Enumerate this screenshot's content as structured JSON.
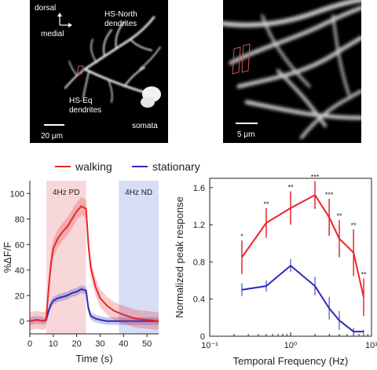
{
  "micrograph_left": {
    "orientation_labels": [
      "dorsal",
      "medial"
    ],
    "region_labels": {
      "hs_north": [
        "HS-North",
        "dendrites"
      ],
      "hs_eq": [
        "HS-Eq",
        "dendrites"
      ],
      "somata": "somata"
    },
    "scalebar_label": "20 μm"
  },
  "micrograph_right": {
    "scalebar_label": "5 μm"
  },
  "legend": {
    "items": [
      {
        "label": "walking",
        "color": "#e8262a"
      },
      {
        "label": "stationary",
        "color": "#2b2bb8"
      }
    ]
  },
  "chart_data": [
    {
      "type": "line",
      "ylabel": "%ΔF/F",
      "xlabel": "Time (s)",
      "xlim": [
        0,
        55
      ],
      "ylim": [
        -10,
        110
      ],
      "xticks": [
        0,
        10,
        20,
        30,
        40,
        50
      ],
      "yticks": [
        0,
        20,
        40,
        60,
        80,
        100
      ],
      "shaded_regions": [
        {
          "label": "4Hz PD",
          "x": [
            7,
            24
          ],
          "color": "#f4c9cc"
        },
        {
          "label": "4Hz ND",
          "x": [
            38,
            55
          ],
          "color": "#c9d2f0"
        }
      ],
      "series": [
        {
          "name": "walking",
          "color": "#e8262a",
          "x": [
            0,
            3,
            6,
            7,
            8,
            9,
            10,
            12,
            14,
            16,
            18,
            20,
            22,
            24,
            25,
            26,
            28,
            30,
            33,
            36,
            40,
            45,
            50,
            55
          ],
          "y": [
            0,
            1,
            0,
            2,
            25,
            45,
            57,
            65,
            70,
            74,
            80,
            86,
            90,
            88,
            60,
            42,
            27,
            18,
            12,
            8,
            5,
            2,
            1,
            0
          ]
        },
        {
          "name": "stationary",
          "color": "#2b2bb8",
          "x": [
            0,
            3,
            6,
            7,
            8,
            9,
            10,
            12,
            14,
            16,
            18,
            20,
            22,
            24,
            25,
            26,
            28,
            30,
            33,
            36,
            40,
            45,
            50,
            55
          ],
          "y": [
            0,
            1,
            0,
            1,
            8,
            13,
            16,
            18,
            19,
            20,
            22,
            23,
            25,
            24,
            10,
            4,
            2,
            1,
            0,
            0,
            0,
            0,
            0,
            0
          ]
        }
      ]
    },
    {
      "type": "line",
      "ylabel": "Normalized peak response",
      "xlabel": "Temporal Frequency (Hz)",
      "x_scale": "log",
      "xlim": [
        0.1,
        10
      ],
      "ylim": [
        0,
        1.7
      ],
      "xticks": [
        "10⁻¹",
        "10⁰",
        "10¹"
      ],
      "yticks": [
        0,
        0.4,
        0.8,
        1.2,
        1.6
      ],
      "series": [
        {
          "name": "walking",
          "color": "#e8262a",
          "x": [
            0.25,
            0.5,
            1,
            2,
            3,
            4,
            6,
            8
          ],
          "y": [
            0.85,
            1.22,
            1.38,
            1.52,
            1.28,
            1.05,
            0.9,
            0.42
          ],
          "err": [
            0.18,
            0.16,
            0.18,
            0.15,
            0.2,
            0.2,
            0.25,
            0.2
          ],
          "significance": [
            "*",
            "**",
            "**",
            "***",
            "***",
            "**",
            "**",
            "**"
          ]
        },
        {
          "name": "stationary",
          "color": "#2b2bb8",
          "x": [
            0.25,
            0.5,
            1,
            2,
            3,
            4,
            6,
            8
          ],
          "y": [
            0.5,
            0.54,
            0.76,
            0.54,
            0.3,
            0.17,
            0.05,
            0.05
          ],
          "err": [
            0.07,
            0.06,
            0.07,
            0.1,
            0.12,
            0.1,
            0.04,
            0.02
          ]
        }
      ]
    }
  ]
}
